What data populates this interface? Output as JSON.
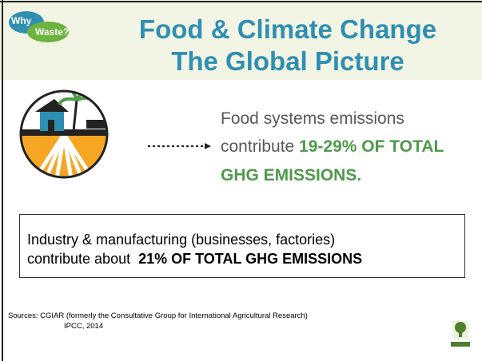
{
  "logo": {
    "line1": "Why",
    "line2": "Waste?"
  },
  "header": {
    "title_line1": "Food & Climate Change",
    "title_line2": "The Global Picture"
  },
  "statement": {
    "line1": "Food systems emissions",
    "line2_prefix": "contribute",
    "line2_highlight": "19-29% OF TOTAL",
    "line3_highlight": "GHG EMISSIONS."
  },
  "box": {
    "line1": "Industry & manufacturing (businesses, factories)",
    "line2_prefix": "contribute about",
    "line2_highlight": "21% OF TOTAL GHG EMISSIONS"
  },
  "sources": {
    "line1": "Sources:  CGIAR (formerly the Consultative Group for International Agricultural Research)",
    "line2": "IPCC, 2014"
  }
}
